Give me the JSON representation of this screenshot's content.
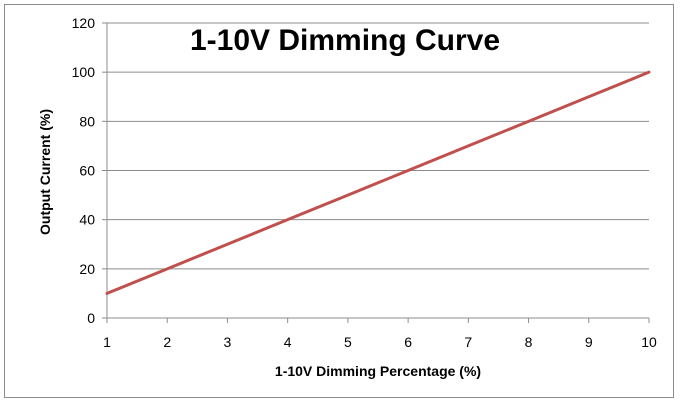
{
  "chart_data": {
    "type": "line",
    "title": "1-10V Dimming Curve",
    "xlabel": "1-10V Dimming Percentage (%)",
    "ylabel": "Output Current (%)",
    "x": [
      1,
      2,
      3,
      4,
      5,
      6,
      7,
      8,
      9,
      10
    ],
    "series": [
      {
        "values": [
          10,
          20,
          30,
          40,
          50,
          60,
          70,
          80,
          90,
          100
        ],
        "color": "#c0504d"
      }
    ],
    "xlim": [
      1,
      10
    ],
    "ylim": [
      0,
      120
    ],
    "xticks": [
      "1",
      "2",
      "3",
      "4",
      "5",
      "6",
      "7",
      "8",
      "9",
      "10"
    ],
    "yticks": [
      "0",
      "20",
      "40",
      "60",
      "80",
      "100",
      "120"
    ],
    "grid": true,
    "legend": "none"
  }
}
